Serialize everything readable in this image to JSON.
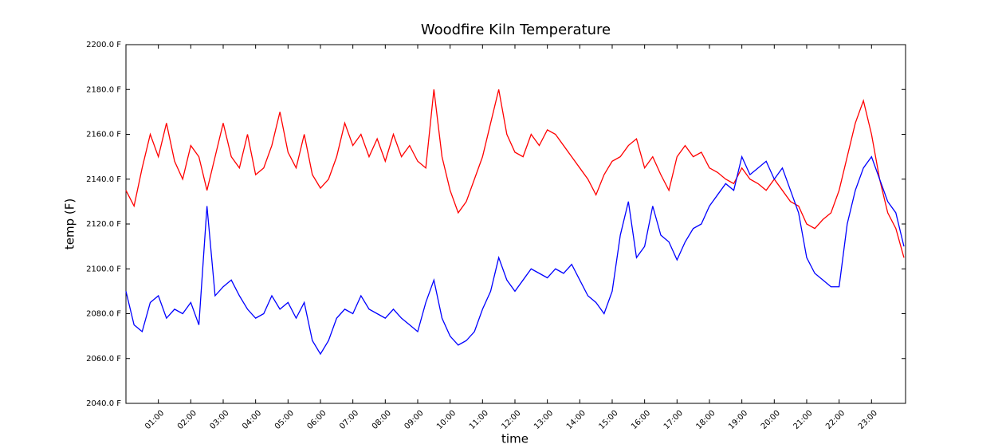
{
  "chart_data": {
    "type": "line",
    "title": "Woodfire Kiln Temperature",
    "x_label": "time",
    "y_label": "temp (F)",
    "x": [
      0,
      0.25,
      0.5,
      0.75,
      1,
      1.25,
      1.5,
      1.75,
      2,
      2.25,
      2.5,
      2.75,
      3,
      3.25,
      3.5,
      3.75,
      4,
      4.25,
      4.5,
      4.75,
      5,
      5.25,
      5.5,
      5.75,
      6,
      6.25,
      6.5,
      6.75,
      7,
      7.25,
      7.5,
      7.75,
      8,
      8.25,
      8.5,
      8.75,
      9,
      9.25,
      9.5,
      9.75,
      10,
      10.25,
      10.5,
      10.75,
      11,
      11.25,
      11.5,
      11.75,
      12,
      12.25,
      12.5,
      12.75,
      13,
      13.25,
      13.5,
      13.75,
      14,
      14.25,
      14.5,
      14.75,
      15,
      15.25,
      15.5,
      15.75,
      16,
      16.25,
      16.5,
      16.75,
      17,
      17.25,
      17.5,
      17.75,
      18,
      18.25,
      18.5,
      18.75,
      19,
      19.25,
      19.5,
      19.75,
      20,
      20.25,
      20.5,
      20.75,
      21,
      21.25,
      21.5,
      21.75,
      22,
      22.25,
      22.5,
      22.75,
      23,
      23.25,
      23.5,
      23.75,
      24
    ],
    "series": [
      {
        "color": "#ff0000",
        "values": [
          2135,
          2128,
          2145,
          2160,
          2150,
          2165,
          2148,
          2140,
          2155,
          2150,
          2135,
          2150,
          2165,
          2150,
          2145,
          2160,
          2142,
          2145,
          2155,
          2170,
          2152,
          2145,
          2160,
          2142,
          2136,
          2140,
          2150,
          2165,
          2155,
          2160,
          2150,
          2158,
          2148,
          2160,
          2150,
          2155,
          2148,
          2145,
          2180,
          2150,
          2135,
          2125,
          2130,
          2140,
          2150,
          2165,
          2180,
          2160,
          2152,
          2150,
          2160,
          2155,
          2162,
          2160,
          2155,
          2150,
          2145,
          2140,
          2133,
          2142,
          2148,
          2150,
          2155,
          2158,
          2145,
          2150,
          2142,
          2135,
          2150,
          2155,
          2150,
          2152,
          2145,
          2143,
          2140,
          2138,
          2145,
          2140,
          2138,
          2135,
          2140,
          2135,
          2130,
          2128,
          2120,
          2118,
          2122,
          2125,
          2135,
          2150,
          2165,
          2175,
          2160,
          2140,
          2125,
          2118,
          2105
        ]
      },
      {
        "color": "#0000ff",
        "values": [
          2090,
          2075,
          2072,
          2085,
          2088,
          2078,
          2082,
          2080,
          2085,
          2075,
          2128,
          2088,
          2092,
          2095,
          2088,
          2082,
          2078,
          2080,
          2088,
          2082,
          2085,
          2078,
          2085,
          2068,
          2062,
          2068,
          2078,
          2082,
          2080,
          2088,
          2082,
          2080,
          2078,
          2082,
          2078,
          2075,
          2072,
          2085,
          2095,
          2078,
          2070,
          2066,
          2068,
          2072,
          2082,
          2090,
          2105,
          2095,
          2090,
          2095,
          2100,
          2098,
          2096,
          2100,
          2098,
          2102,
          2095,
          2088,
          2085,
          2080,
          2090,
          2115,
          2130,
          2105,
          2110,
          2128,
          2115,
          2112,
          2104,
          2112,
          2118,
          2120,
          2128,
          2133,
          2138,
          2135,
          2150,
          2142,
          2145,
          2148,
          2140,
          2145,
          2135,
          2125,
          2105,
          2098,
          2095,
          2092,
          2092,
          2120,
          2135,
          2145,
          2150,
          2140,
          2130,
          2125,
          2110
        ]
      }
    ],
    "xlim": [
      0,
      24.05
    ],
    "xticks": [
      {
        "value": 1,
        "label": "01:00"
      },
      {
        "value": 2,
        "label": "02:00"
      },
      {
        "value": 3,
        "label": "03:00"
      },
      {
        "value": 4,
        "label": "04:00"
      },
      {
        "value": 5,
        "label": "05:00"
      },
      {
        "value": 6,
        "label": "06:00"
      },
      {
        "value": 7,
        "label": "07:00"
      },
      {
        "value": 8,
        "label": "08:00"
      },
      {
        "value": 9,
        "label": "09:00"
      },
      {
        "value": 10,
        "label": "10:00"
      },
      {
        "value": 11,
        "label": "11:00"
      },
      {
        "value": 12,
        "label": "12:00"
      },
      {
        "value": 13,
        "label": "13:00"
      },
      {
        "value": 14,
        "label": "14:00"
      },
      {
        "value": 15,
        "label": "15:00"
      },
      {
        "value": 16,
        "label": "16:00"
      },
      {
        "value": 17,
        "label": "17:00"
      },
      {
        "value": 18,
        "label": "18:00"
      },
      {
        "value": 19,
        "label": "19:00"
      },
      {
        "value": 20,
        "label": "20:00"
      },
      {
        "value": 21,
        "label": "21:00"
      },
      {
        "value": 22,
        "label": "22:00"
      },
      {
        "value": 23,
        "label": "23:00"
      }
    ],
    "ylim": [
      2040,
      2200
    ],
    "yticks": [
      {
        "value": 2040,
        "label": "2040.0 F"
      },
      {
        "value": 2060,
        "label": "2060.0 F"
      },
      {
        "value": 2080,
        "label": "2080.0 F"
      },
      {
        "value": 2100,
        "label": "2100.0 F"
      },
      {
        "value": 2120,
        "label": "2120.0 F"
      },
      {
        "value": 2140,
        "label": "2140.0 F"
      },
      {
        "value": 2160,
        "label": "2160.0 F"
      },
      {
        "value": 2180,
        "label": "2180.0 F"
      },
      {
        "value": 2200,
        "label": "2200.0 F"
      }
    ],
    "grid": false
  }
}
